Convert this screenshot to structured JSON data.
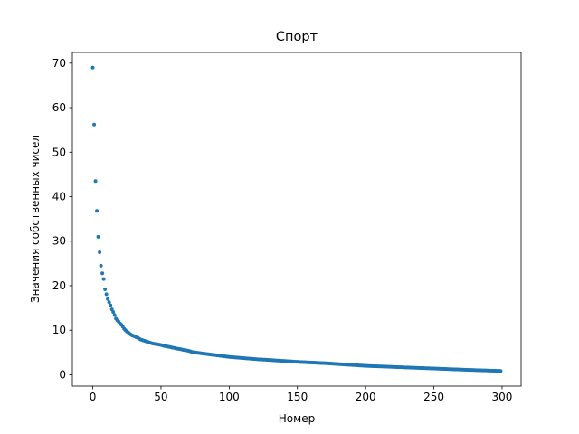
{
  "chart_data": {
    "type": "scatter",
    "title": "Спорт",
    "xlabel": "Номер",
    "ylabel": "Значения собственных чисел",
    "color": "#1f77b4",
    "x": [
      0,
      1,
      2,
      3,
      4,
      5,
      6,
      7,
      8,
      9,
      10,
      11,
      12,
      13,
      14,
      15,
      16,
      17,
      18,
      19,
      20,
      21,
      22,
      23,
      24,
      25,
      26,
      27,
      28,
      29,
      30,
      31,
      32,
      33,
      34,
      35,
      36,
      37,
      38,
      39,
      40,
      41,
      42,
      43,
      44,
      45,
      46,
      47,
      48,
      49,
      50,
      51,
      52,
      53,
      54,
      55,
      56,
      57,
      58,
      59,
      60,
      61,
      62,
      63,
      64,
      65,
      66,
      67,
      68,
      69,
      70,
      71,
      72,
      73,
      74,
      75,
      76,
      77,
      78,
      79,
      80,
      81,
      82,
      83,
      84,
      85,
      86,
      87,
      88,
      89,
      90,
      91,
      92,
      93,
      94,
      95,
      96,
      97,
      98,
      99,
      100,
      101,
      102,
      103,
      104,
      105,
      106,
      107,
      108,
      109,
      110,
      111,
      112,
      113,
      114,
      115,
      116,
      117,
      118,
      119,
      120,
      121,
      122,
      123,
      124,
      125,
      126,
      127,
      128,
      129,
      130,
      131,
      132,
      133,
      134,
      135,
      136,
      137,
      138,
      139,
      140,
      141,
      142,
      143,
      144,
      145,
      146,
      147,
      148,
      149,
      150,
      151,
      152,
      153,
      154,
      155,
      156,
      157,
      158,
      159,
      160,
      161,
      162,
      163,
      164,
      165,
      166,
      167,
      168,
      169,
      170,
      171,
      172,
      173,
      174,
      175,
      176,
      177,
      178,
      179,
      180,
      181,
      182,
      183,
      184,
      185,
      186,
      187,
      188,
      189,
      190,
      191,
      192,
      193,
      194,
      195,
      196,
      197,
      198,
      199,
      200,
      201,
      202,
      203,
      204,
      205,
      206,
      207,
      208,
      209,
      210,
      211,
      212,
      213,
      214,
      215,
      216,
      217,
      218,
      219,
      220,
      221,
      222,
      223,
      224,
      225,
      226,
      227,
      228,
      229,
      230,
      231,
      232,
      233,
      234,
      235,
      236,
      237,
      238,
      239,
      240,
      241,
      242,
      243,
      244,
      245,
      246,
      247,
      248,
      249,
      250,
      251,
      252,
      253,
      254,
      255,
      256,
      257,
      258,
      259,
      260,
      261,
      262,
      263,
      264,
      265,
      266,
      267,
      268,
      269,
      270,
      271,
      272,
      273,
      274,
      275,
      276,
      277,
      278,
      279,
      280,
      281,
      282,
      283,
      284,
      285,
      286,
      287,
      288,
      289,
      290,
      291,
      292,
      293,
      294,
      295,
      296,
      297,
      298,
      299
    ],
    "values": [
      69.0,
      56.2,
      43.5,
      36.8,
      31.0,
      27.5,
      24.5,
      22.8,
      21.5,
      19.2,
      18.1,
      17.0,
      16.3,
      15.6,
      14.7,
      14.1,
      13.4,
      12.6,
      12.2,
      11.9,
      11.5,
      11.2,
      10.8,
      10.3,
      10.0,
      9.7,
      9.5,
      9.2,
      9.0,
      8.8,
      8.7,
      8.6,
      8.4,
      8.3,
      8.1,
      7.9,
      7.8,
      7.7,
      7.6,
      7.5,
      7.4,
      7.3,
      7.2,
      7.1,
      7.0,
      6.95,
      6.9,
      6.85,
      6.8,
      6.75,
      6.7,
      6.6,
      6.5,
      6.45,
      6.4,
      6.3,
      6.25,
      6.2,
      6.1,
      6.05,
      6.0,
      5.9,
      5.85,
      5.8,
      5.75,
      5.7,
      5.6,
      5.55,
      5.5,
      5.45,
      5.4,
      5.3,
      5.2,
      5.1,
      5.05,
      5.0,
      4.96,
      4.92,
      4.88,
      4.84,
      4.8,
      4.76,
      4.72,
      4.68,
      4.64,
      4.6,
      4.56,
      4.52,
      4.48,
      4.44,
      4.4,
      4.36,
      4.32,
      4.28,
      4.24,
      4.2,
      4.16,
      4.12,
      4.08,
      4.04,
      4.0,
      3.98,
      3.95,
      3.93,
      3.9,
      3.88,
      3.85,
      3.83,
      3.8,
      3.78,
      3.75,
      3.73,
      3.7,
      3.68,
      3.65,
      3.63,
      3.6,
      3.58,
      3.55,
      3.53,
      3.5,
      3.48,
      3.45,
      3.43,
      3.41,
      3.4,
      3.38,
      3.36,
      3.34,
      3.32,
      3.3,
      3.28,
      3.26,
      3.24,
      3.22,
      3.2,
      3.18,
      3.16,
      3.14,
      3.12,
      3.1,
      3.08,
      3.06,
      3.04,
      3.02,
      3.0,
      2.98,
      2.96,
      2.94,
      2.92,
      2.9,
      2.88,
      2.87,
      2.85,
      2.84,
      2.82,
      2.81,
      2.79,
      2.78,
      2.76,
      2.75,
      2.73,
      2.72,
      2.7,
      2.69,
      2.67,
      2.66,
      2.64,
      2.63,
      2.61,
      2.6,
      2.58,
      2.57,
      2.55,
      2.54,
      2.5,
      2.48,
      2.46,
      2.44,
      2.42,
      2.4,
      2.38,
      2.36,
      2.34,
      2.32,
      2.3,
      2.28,
      2.26,
      2.24,
      2.22,
      2.2,
      2.18,
      2.16,
      2.14,
      2.12,
      2.1,
      2.08,
      2.06,
      2.04,
      2.02,
      2.0,
      1.99,
      1.98,
      1.96,
      1.95,
      1.94,
      1.93,
      1.92,
      1.9,
      1.89,
      1.88,
      1.87,
      1.86,
      1.84,
      1.83,
      1.82,
      1.81,
      1.8,
      1.78,
      1.77,
      1.76,
      1.75,
      1.74,
      1.72,
      1.71,
      1.7,
      1.69,
      1.68,
      1.66,
      1.65,
      1.64,
      1.63,
      1.62,
      1.6,
      1.59,
      1.58,
      1.57,
      1.56,
      1.54,
      1.53,
      1.52,
      1.51,
      1.5,
      1.48,
      1.47,
      1.46,
      1.45,
      1.44,
      1.42,
      1.41,
      1.4,
      1.39,
      1.38,
      1.36,
      1.35,
      1.34,
      1.33,
      1.32,
      1.3,
      1.29,
      1.28,
      1.27,
      1.26,
      1.24,
      1.23,
      1.22,
      1.21,
      1.2,
      1.18,
      1.17,
      1.16,
      1.15,
      1.14,
      1.12,
      1.11,
      1.1,
      1.09,
      1.08,
      1.07,
      1.06,
      1.05,
      1.04,
      1.03,
      1.02,
      1.01,
      1.0,
      0.99,
      0.98,
      0.97,
      0.96,
      0.95,
      0.94,
      0.93,
      0.92,
      0.91,
      0.9,
      0.89,
      0.88,
      0.87,
      0.86
    ],
    "xlim": [
      -14.95,
      313.95
    ],
    "ylim": [
      -2.55,
      72.4
    ],
    "xticks": [
      0,
      50,
      100,
      150,
      200,
      250,
      300
    ],
    "yticks": [
      0,
      10,
      20,
      30,
      40,
      50,
      60,
      70
    ]
  }
}
